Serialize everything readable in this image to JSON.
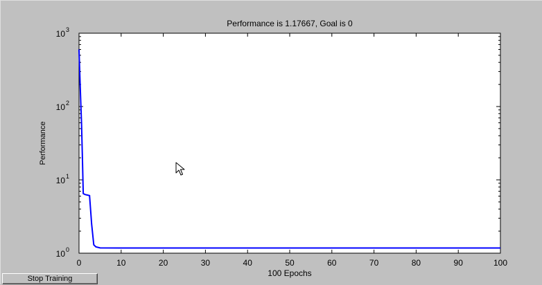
{
  "window": {
    "stop_button_label": "Stop Training"
  },
  "chart_data": {
    "type": "line",
    "title": "Performance is 1.17667, Goal is 0",
    "xlabel": "100 Epochs",
    "ylabel": "Performance",
    "xlim": [
      0,
      100
    ],
    "ylim": [
      1,
      1000
    ],
    "yscale": "log",
    "grid": false,
    "x_ticks": [
      0,
      10,
      20,
      30,
      40,
      50,
      60,
      70,
      80,
      90,
      100
    ],
    "x_tick_labels": [
      "0",
      "10",
      "20",
      "30",
      "40",
      "50",
      "60",
      "70",
      "80",
      "90",
      "100"
    ],
    "y_ticks": [
      1,
      10,
      100,
      1000
    ],
    "y_tick_labels": [
      {
        "base": "10",
        "exp": "0"
      },
      {
        "base": "10",
        "exp": "1"
      },
      {
        "base": "10",
        "exp": "2"
      },
      {
        "base": "10",
        "exp": "3"
      }
    ],
    "series": [
      {
        "color": "#0000ff",
        "x": [
          0,
          0.3,
          0.6,
          0.8,
          1,
          1.2,
          1.5,
          2,
          2.5,
          3,
          3.5,
          4,
          5,
          10,
          20,
          50,
          100
        ],
        "y": [
          600,
          180,
          60,
          20,
          6.5,
          6.4,
          6.3,
          6.2,
          6.1,
          2.5,
          1.3,
          1.22,
          1.18,
          1.177,
          1.177,
          1.177,
          1.177
        ]
      }
    ]
  }
}
